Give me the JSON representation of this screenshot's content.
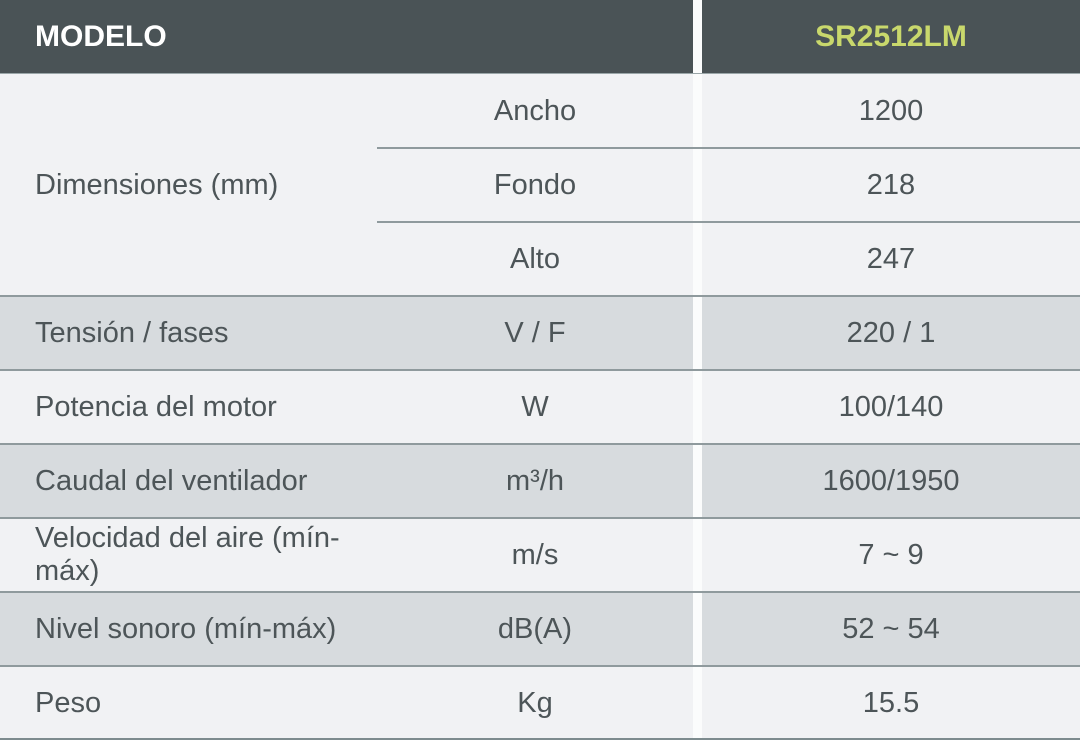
{
  "header": {
    "model_label": "MODELO",
    "model_value": "SR2512LM",
    "model_color": "#c9d86c"
  },
  "dimensions": {
    "label": "Dimensiones (mm)",
    "rows": [
      {
        "unit": "Ancho",
        "value": "1200"
      },
      {
        "unit": "Fondo",
        "value": "218"
      },
      {
        "unit": "Alto",
        "value": "247"
      }
    ]
  },
  "rows": [
    {
      "label": "Tensión / fases",
      "unit": "V / F",
      "value": "220 / 1"
    },
    {
      "label": "Potencia del motor",
      "unit": "W",
      "value": "100/140"
    },
    {
      "label": "Caudal del ventilador",
      "unit": "m³/h",
      "value": "1600/1950"
    },
    {
      "label": "Velocidad del aire (mín-máx)",
      "unit": "m/s",
      "value": "7 ~ 9"
    },
    {
      "label": "Nivel sonoro (mín-máx)",
      "unit": "dB(A)",
      "value": "52 ~ 54"
    },
    {
      "label": "Peso",
      "unit": "Kg",
      "value": "15.5"
    }
  ]
}
